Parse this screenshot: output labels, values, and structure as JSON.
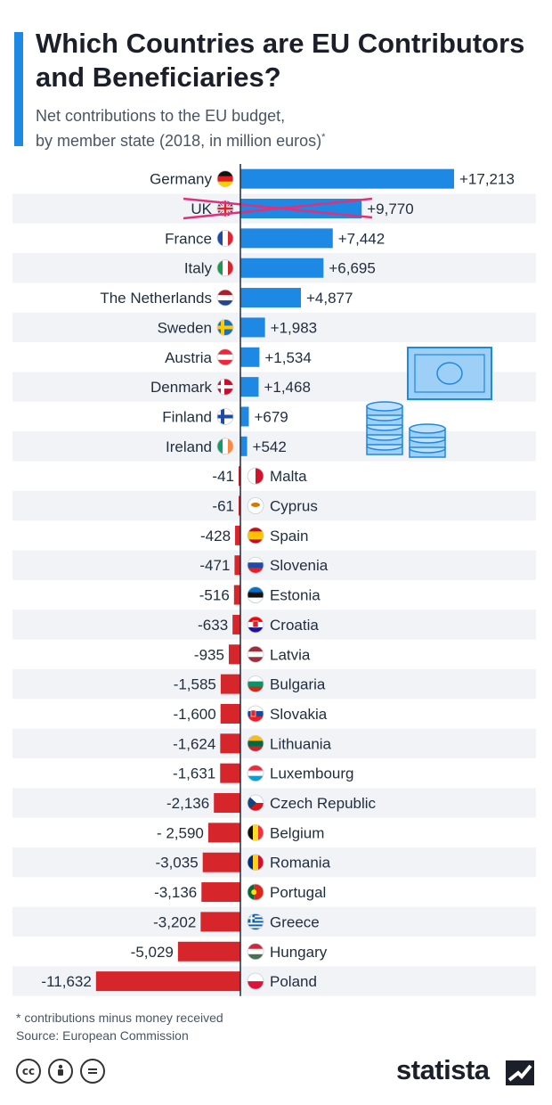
{
  "title": "Which Countries are EU Contributors and Beneficiaries?",
  "subtitle_line1": "Net contributions to the EU budget,",
  "subtitle_line2": "by member state (2018, in million euros)",
  "subtitle_mark": "*",
  "footnote": "* contributions minus money received",
  "source": "Source: European Commission",
  "brand": "statista",
  "icons": [
    "cc-icon",
    "attribution-icon",
    "no-derivatives-icon"
  ],
  "colors": {
    "positive": "#1e88e5",
    "negative": "#d7262b",
    "accent": "#1e88e5",
    "row_stripe": "#f1f3f7",
    "crossout": "#e0307a"
  },
  "chart_data": {
    "type": "bar",
    "orientation": "horizontal",
    "categories": [
      "Germany",
      "UK",
      "France",
      "Italy",
      "The Netherlands",
      "Sweden",
      "Austria",
      "Denmark",
      "Finland",
      "Ireland",
      "Malta",
      "Cyprus",
      "Spain",
      "Slovenia",
      "Estonia",
      "Croatia",
      "Latvia",
      "Bulgaria",
      "Slovakia",
      "Lithuania",
      "Luxembourg",
      "Czech Republic",
      "Belgium",
      "Romania",
      "Portugal",
      "Greece",
      "Hungary",
      "Poland"
    ],
    "values": [
      17213,
      9770,
      7442,
      6695,
      4877,
      1983,
      1534,
      1468,
      679,
      542,
      -41,
      -61,
      -428,
      -471,
      -516,
      -633,
      -935,
      -1585,
      -1600,
      -1624,
      -1631,
      -2136,
      -2590,
      -3035,
      -3136,
      -3202,
      -5029,
      -11632
    ],
    "labels": [
      "+17,213",
      "+9,770",
      "+7,442",
      "+6,695",
      "+4,877",
      "+1,983",
      "+1,534",
      "+1,468",
      "+679",
      "+542",
      "-41",
      "-61",
      "-428",
      "-471",
      "-516",
      "-633",
      "-935",
      "-1,585",
      "-1,600",
      "-1,624",
      "-1,631",
      "-2,136",
      "- 2,590",
      "-3,035",
      "-3,136",
      "-3,202",
      "-5,029",
      "-11,632"
    ],
    "crossed_out": [
      "UK"
    ],
    "xlim": [
      -12500,
      20500
    ],
    "grid": false,
    "legend": "none"
  }
}
